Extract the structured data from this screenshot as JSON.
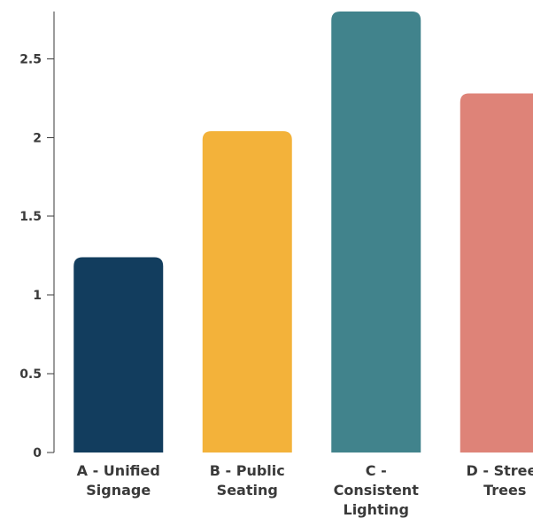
{
  "chart_data": {
    "type": "bar",
    "categories": [
      [
        "A - Unified",
        "Signage"
      ],
      [
        "B - Public",
        "Seating"
      ],
      [
        "C -",
        "Consistent",
        "Lighting"
      ],
      [
        "D - Street",
        "Trees"
      ]
    ],
    "values": [
      1.24,
      2.04,
      2.8,
      2.28
    ],
    "colors": [
      "#123d5e",
      "#f3b23a",
      "#41838c",
      "#de8378"
    ],
    "title": "",
    "xlabel": "",
    "ylabel": "",
    "ylim": [
      0,
      2.8
    ],
    "yticks": [
      0,
      0.5,
      1,
      1.5,
      2,
      2.5
    ],
    "ytick_labels": [
      "0",
      "0.5",
      "1",
      "1.5",
      "2",
      "2.5"
    ],
    "grid": false,
    "legend": "none"
  }
}
